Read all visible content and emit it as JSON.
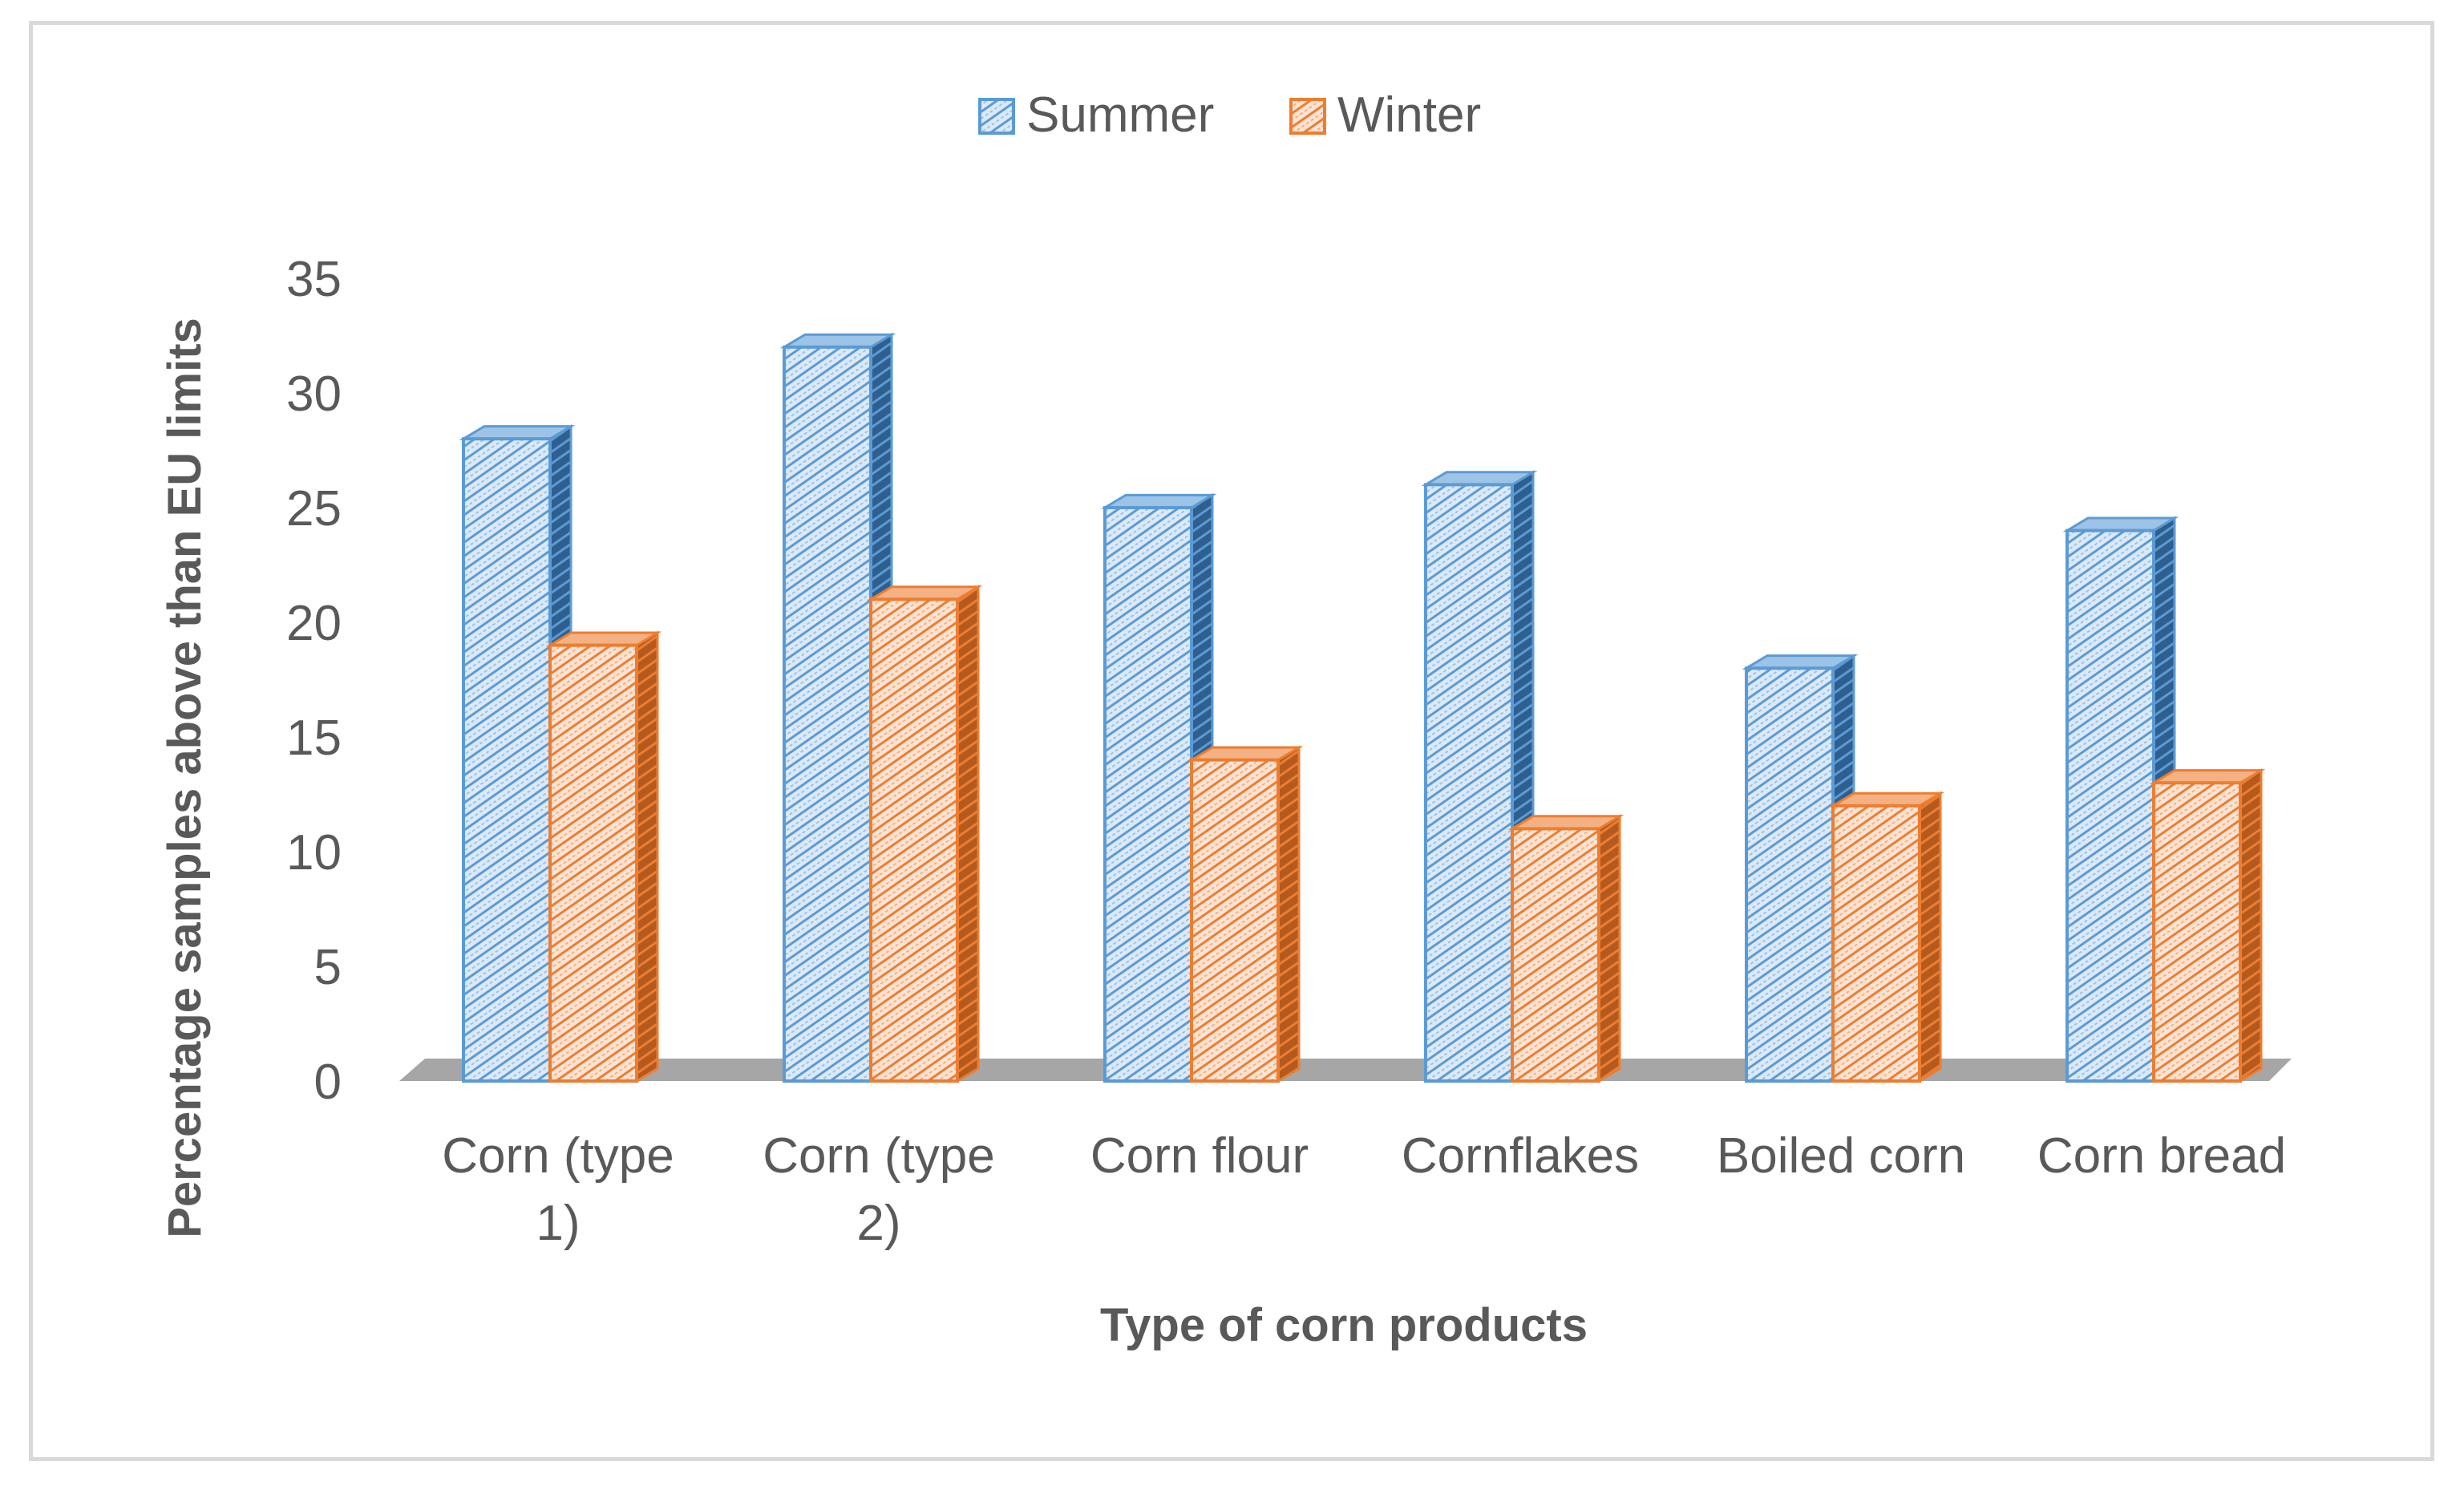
{
  "chart_data": {
    "type": "bar",
    "title": "",
    "xlabel": "Type of corn products",
    "ylabel": "Percentage samples above than EU limits",
    "ylim": [
      0,
      35
    ],
    "yticks": [
      0,
      5,
      10,
      15,
      20,
      25,
      30,
      35
    ],
    "categories": [
      [
        "Corn (type",
        "1)"
      ],
      [
        "Corn (type",
        "2)"
      ],
      [
        "Corn flour"
      ],
      [
        "Cornflakes"
      ],
      [
        "Boiled corn"
      ],
      [
        "Corn bread"
      ]
    ],
    "series": [
      {
        "name": "Summer",
        "values": [
          28,
          32,
          25,
          26,
          18,
          24
        ],
        "color": "#5b9bd5",
        "fill": "#dbe9f8"
      },
      {
        "name": "Winter",
        "values": [
          19,
          21,
          14,
          11,
          12,
          13
        ],
        "color": "#ed7d31",
        "fill": "#fbe3d3"
      }
    ],
    "legend": "top-center",
    "grid": false,
    "style": "3d-clustered-column-hatched"
  }
}
